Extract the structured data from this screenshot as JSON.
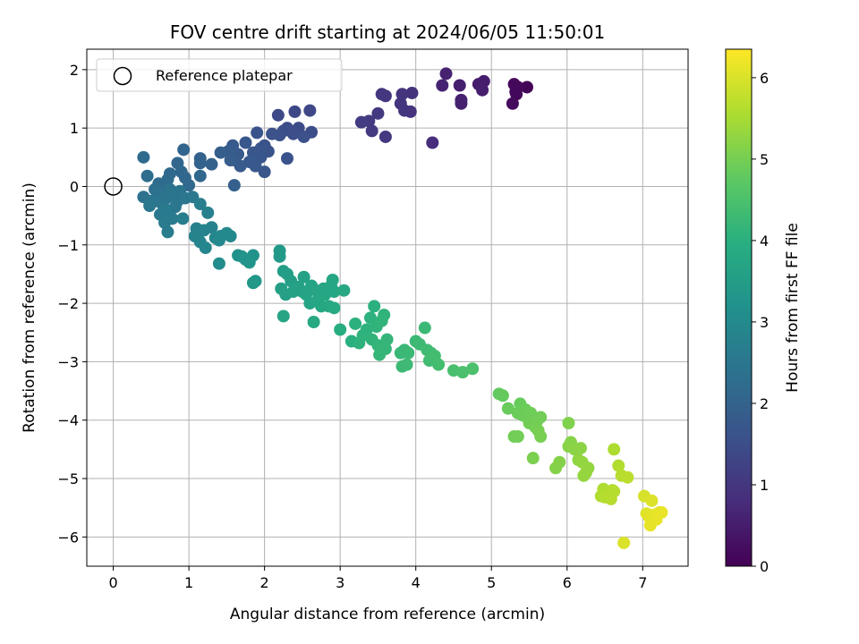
{
  "chart_data": {
    "type": "scatter",
    "title": "FOV centre drift starting at 2024/06/05 11:50:01",
    "xlabel": "Angular distance from reference (arcmin)",
    "ylabel": "Rotation from reference (arcmin)",
    "colorbar_label": "Hours from first FF file",
    "xlim": [
      -0.35,
      7.6
    ],
    "ylim": [
      -6.5,
      2.35
    ],
    "x_ticks": [
      0,
      1,
      2,
      3,
      4,
      5,
      6,
      7
    ],
    "y_ticks": [
      -6,
      -5,
      -4,
      -3,
      -2,
      -1,
      0,
      1,
      2
    ],
    "colorbar_range": [
      0,
      6.35
    ],
    "colorbar_ticks": [
      0,
      1,
      2,
      3,
      4,
      5,
      6
    ],
    "colormap": "viridis",
    "grid": true,
    "legend_position": "top-left",
    "legend": [
      {
        "label": "Reference platepar",
        "marker": "open-circle"
      }
    ],
    "reference_point": {
      "x": 0,
      "y": 0
    },
    "points": [
      {
        "x": 4.4,
        "y": 1.93,
        "t": 0.6
      },
      {
        "x": 4.35,
        "y": 1.73,
        "t": 0.62
      },
      {
        "x": 4.58,
        "y": 1.73,
        "t": 0.55
      },
      {
        "x": 4.6,
        "y": 1.48,
        "t": 0.58
      },
      {
        "x": 4.6,
        "y": 1.42,
        "t": 0.57
      },
      {
        "x": 4.83,
        "y": 1.75,
        "t": 0.5
      },
      {
        "x": 4.88,
        "y": 1.65,
        "t": 0.52
      },
      {
        "x": 4.9,
        "y": 1.8,
        "t": 0.48
      },
      {
        "x": 5.3,
        "y": 1.75,
        "t": 0.15
      },
      {
        "x": 5.33,
        "y": 1.58,
        "t": 0.12
      },
      {
        "x": 5.28,
        "y": 1.42,
        "t": 0.18
      },
      {
        "x": 5.35,
        "y": 1.7,
        "t": 0.1
      },
      {
        "x": 5.47,
        "y": 1.7,
        "t": 0.05
      },
      {
        "x": 5.32,
        "y": 1.62,
        "t": 0.08
      },
      {
        "x": 3.55,
        "y": 1.58,
        "t": 1.0
      },
      {
        "x": 3.6,
        "y": 1.55,
        "t": 0.98
      },
      {
        "x": 3.82,
        "y": 1.58,
        "t": 0.95
      },
      {
        "x": 3.95,
        "y": 1.6,
        "t": 0.9
      },
      {
        "x": 3.8,
        "y": 1.42,
        "t": 0.96
      },
      {
        "x": 3.85,
        "y": 1.3,
        "t": 0.97
      },
      {
        "x": 3.93,
        "y": 1.28,
        "t": 0.93
      },
      {
        "x": 3.5,
        "y": 1.25,
        "t": 1.05
      },
      {
        "x": 3.38,
        "y": 1.12,
        "t": 1.1
      },
      {
        "x": 3.28,
        "y": 1.1,
        "t": 1.12
      },
      {
        "x": 3.42,
        "y": 0.95,
        "t": 1.08
      },
      {
        "x": 3.6,
        "y": 0.85,
        "t": 1.02
      },
      {
        "x": 4.22,
        "y": 0.75,
        "t": 0.8
      },
      {
        "x": 2.18,
        "y": 1.22,
        "t": 1.4
      },
      {
        "x": 2.6,
        "y": 1.3,
        "t": 1.35
      },
      {
        "x": 2.4,
        "y": 1.28,
        "t": 1.38
      },
      {
        "x": 2.3,
        "y": 1.0,
        "t": 1.48
      },
      {
        "x": 2.25,
        "y": 0.95,
        "t": 1.5
      },
      {
        "x": 2.38,
        "y": 0.9,
        "t": 1.52
      },
      {
        "x": 2.45,
        "y": 1.0,
        "t": 1.45
      },
      {
        "x": 2.52,
        "y": 0.85,
        "t": 1.55
      },
      {
        "x": 2.62,
        "y": 0.93,
        "t": 1.5
      },
      {
        "x": 2.2,
        "y": 0.88,
        "t": 1.55
      },
      {
        "x": 2.1,
        "y": 0.9,
        "t": 1.58
      },
      {
        "x": 2.0,
        "y": 0.7,
        "t": 1.6
      },
      {
        "x": 1.9,
        "y": 0.92,
        "t": 1.62
      },
      {
        "x": 1.95,
        "y": 0.65,
        "t": 1.65
      },
      {
        "x": 1.85,
        "y": 0.58,
        "t": 1.7
      },
      {
        "x": 1.75,
        "y": 0.75,
        "t": 1.72
      },
      {
        "x": 1.65,
        "y": 0.55,
        "t": 1.75
      },
      {
        "x": 1.58,
        "y": 0.7,
        "t": 1.78
      },
      {
        "x": 1.6,
        "y": 0.45,
        "t": 1.8
      },
      {
        "x": 1.68,
        "y": 0.35,
        "t": 1.82
      },
      {
        "x": 1.52,
        "y": 0.6,
        "t": 1.85
      },
      {
        "x": 1.42,
        "y": 0.58,
        "t": 1.88
      },
      {
        "x": 1.55,
        "y": 0.45,
        "t": 1.86
      },
      {
        "x": 2.3,
        "y": 0.48,
        "t": 1.6
      },
      {
        "x": 2.0,
        "y": 0.25,
        "t": 1.7
      },
      {
        "x": 1.95,
        "y": 0.5,
        "t": 1.68
      },
      {
        "x": 1.88,
        "y": 0.35,
        "t": 1.74
      },
      {
        "x": 1.8,
        "y": 0.42,
        "t": 1.76
      },
      {
        "x": 1.6,
        "y": 0.02,
        "t": 1.9
      },
      {
        "x": 2.05,
        "y": 0.6,
        "t": 1.64
      },
      {
        "x": 1.3,
        "y": 0.38,
        "t": 1.95
      },
      {
        "x": 1.15,
        "y": 0.48,
        "t": 2.0
      },
      {
        "x": 1.15,
        "y": 0.4,
        "t": 2.02
      },
      {
        "x": 0.93,
        "y": 0.63,
        "t": 2.05
      },
      {
        "x": 0.85,
        "y": 0.4,
        "t": 2.08
      },
      {
        "x": 0.9,
        "y": 0.25,
        "t": 2.1
      },
      {
        "x": 0.95,
        "y": 0.15,
        "t": 2.12
      },
      {
        "x": 1.15,
        "y": 0.18,
        "t": 2.1
      },
      {
        "x": 0.75,
        "y": 0.22,
        "t": 2.15
      },
      {
        "x": 0.72,
        "y": 0.12,
        "t": 2.18
      },
      {
        "x": 0.7,
        "y": 0.05,
        "t": 2.2
      },
      {
        "x": 0.6,
        "y": 0.05,
        "t": 2.22
      },
      {
        "x": 0.45,
        "y": 0.18,
        "t": 2.25
      },
      {
        "x": 0.4,
        "y": 0.5,
        "t": 2.2
      },
      {
        "x": 1.0,
        "y": 0.02,
        "t": 2.15
      },
      {
        "x": 0.4,
        "y": -0.18,
        "t": 2.35
      },
      {
        "x": 0.5,
        "y": -0.25,
        "t": 2.4
      },
      {
        "x": 0.55,
        "y": -0.05,
        "t": 2.3
      },
      {
        "x": 0.6,
        "y": -0.1,
        "t": 2.38
      },
      {
        "x": 0.65,
        "y": -0.3,
        "t": 2.45
      },
      {
        "x": 0.7,
        "y": -0.2,
        "t": 2.42
      },
      {
        "x": 0.75,
        "y": -0.05,
        "t": 2.4
      },
      {
        "x": 0.8,
        "y": -0.15,
        "t": 2.45
      },
      {
        "x": 0.85,
        "y": -0.25,
        "t": 2.48
      },
      {
        "x": 0.88,
        "y": -0.08,
        "t": 2.44
      },
      {
        "x": 0.95,
        "y": -0.2,
        "t": 2.5
      },
      {
        "x": 1.05,
        "y": -0.18,
        "t": 2.52
      },
      {
        "x": 0.48,
        "y": -0.33,
        "t": 2.5
      },
      {
        "x": 0.62,
        "y": -0.48,
        "t": 2.55
      },
      {
        "x": 0.7,
        "y": -0.4,
        "t": 2.58
      },
      {
        "x": 0.68,
        "y": -0.62,
        "t": 2.6
      },
      {
        "x": 0.72,
        "y": -0.78,
        "t": 2.65
      },
      {
        "x": 0.78,
        "y": -0.55,
        "t": 2.62
      },
      {
        "x": 0.92,
        "y": -0.55,
        "t": 2.68
      },
      {
        "x": 0.58,
        "y": -0.25,
        "t": 2.47
      },
      {
        "x": 0.82,
        "y": -0.35,
        "t": 2.52
      },
      {
        "x": 1.1,
        "y": -0.72,
        "t": 2.75
      },
      {
        "x": 1.08,
        "y": -0.85,
        "t": 2.8
      },
      {
        "x": 1.2,
        "y": -0.75,
        "t": 2.82
      },
      {
        "x": 1.15,
        "y": -0.95,
        "t": 2.85
      },
      {
        "x": 1.22,
        "y": -1.05,
        "t": 2.9
      },
      {
        "x": 1.3,
        "y": -0.7,
        "t": 2.82
      },
      {
        "x": 1.35,
        "y": -0.88,
        "t": 2.92
      },
      {
        "x": 1.4,
        "y": -0.92,
        "t": 2.95
      },
      {
        "x": 1.42,
        "y": -0.85,
        "t": 2.94
      },
      {
        "x": 1.5,
        "y": -0.8,
        "t": 2.96
      },
      {
        "x": 1.55,
        "y": -0.85,
        "t": 2.98
      },
      {
        "x": 1.4,
        "y": -1.32,
        "t": 3.05
      },
      {
        "x": 1.25,
        "y": -0.45,
        "t": 2.75
      },
      {
        "x": 1.15,
        "y": -0.3,
        "t": 2.7
      },
      {
        "x": 1.65,
        "y": -1.18,
        "t": 3.2
      },
      {
        "x": 1.7,
        "y": -1.2,
        "t": 3.22
      },
      {
        "x": 1.75,
        "y": -1.25,
        "t": 3.25
      },
      {
        "x": 1.8,
        "y": -1.3,
        "t": 3.28
      },
      {
        "x": 1.85,
        "y": -1.18,
        "t": 3.24
      },
      {
        "x": 1.88,
        "y": -1.62,
        "t": 3.35
      },
      {
        "x": 1.85,
        "y": -1.65,
        "t": 3.34
      },
      {
        "x": 2.2,
        "y": -1.1,
        "t": 3.4
      },
      {
        "x": 2.2,
        "y": -1.2,
        "t": 3.42
      },
      {
        "x": 2.22,
        "y": -1.75,
        "t": 3.55
      },
      {
        "x": 2.25,
        "y": -1.45,
        "t": 3.5
      },
      {
        "x": 2.28,
        "y": -1.85,
        "t": 3.58
      },
      {
        "x": 2.3,
        "y": -1.5,
        "t": 3.52
      },
      {
        "x": 2.35,
        "y": -1.62,
        "t": 3.55
      },
      {
        "x": 2.38,
        "y": -1.8,
        "t": 3.6
      },
      {
        "x": 2.42,
        "y": -1.75,
        "t": 3.62
      },
      {
        "x": 2.45,
        "y": -1.72,
        "t": 3.6
      },
      {
        "x": 2.5,
        "y": -1.8,
        "t": 3.65
      },
      {
        "x": 2.52,
        "y": -1.55,
        "t": 3.6
      },
      {
        "x": 2.55,
        "y": -1.85,
        "t": 3.68
      },
      {
        "x": 2.6,
        "y": -2.0,
        "t": 3.72
      },
      {
        "x": 2.62,
        "y": -1.7,
        "t": 3.66
      },
      {
        "x": 2.65,
        "y": -2.32,
        "t": 3.8
      },
      {
        "x": 2.68,
        "y": -1.78,
        "t": 3.7
      },
      {
        "x": 2.7,
        "y": -1.95,
        "t": 3.75
      },
      {
        "x": 2.75,
        "y": -2.05,
        "t": 3.78
      },
      {
        "x": 2.78,
        "y": -1.75,
        "t": 3.72
      },
      {
        "x": 2.8,
        "y": -1.85,
        "t": 3.76
      },
      {
        "x": 2.85,
        "y": -2.05,
        "t": 3.8
      },
      {
        "x": 2.88,
        "y": -1.7,
        "t": 3.76
      },
      {
        "x": 2.9,
        "y": -1.6,
        "t": 3.74
      },
      {
        "x": 2.92,
        "y": -2.08,
        "t": 3.82
      },
      {
        "x": 3.05,
        "y": -1.78,
        "t": 3.8
      },
      {
        "x": 2.25,
        "y": -2.22,
        "t": 3.7
      },
      {
        "x": 2.92,
        "y": -1.8,
        "t": 3.78
      },
      {
        "x": 3.0,
        "y": -2.45,
        "t": 3.95
      },
      {
        "x": 3.15,
        "y": -2.65,
        "t": 4.0
      },
      {
        "x": 3.2,
        "y": -2.35,
        "t": 4.02
      },
      {
        "x": 3.25,
        "y": -2.68,
        "t": 4.05
      },
      {
        "x": 3.3,
        "y": -2.55,
        "t": 4.08
      },
      {
        "x": 3.35,
        "y": -2.45,
        "t": 4.06
      },
      {
        "x": 3.4,
        "y": -2.25,
        "t": 4.05
      },
      {
        "x": 3.42,
        "y": -2.62,
        "t": 4.1
      },
      {
        "x": 3.45,
        "y": -2.05,
        "t": 4.02
      },
      {
        "x": 3.48,
        "y": -2.4,
        "t": 4.1
      },
      {
        "x": 3.5,
        "y": -2.72,
        "t": 4.15
      },
      {
        "x": 3.52,
        "y": -2.88,
        "t": 4.18
      },
      {
        "x": 3.55,
        "y": -2.3,
        "t": 4.12
      },
      {
        "x": 3.58,
        "y": -2.2,
        "t": 4.1
      },
      {
        "x": 3.6,
        "y": -2.78,
        "t": 4.18
      },
      {
        "x": 3.62,
        "y": -2.62,
        "t": 4.16
      },
      {
        "x": 3.8,
        "y": -2.85,
        "t": 4.22
      },
      {
        "x": 3.82,
        "y": -3.08,
        "t": 4.28
      },
      {
        "x": 3.85,
        "y": -2.8,
        "t": 4.24
      },
      {
        "x": 3.88,
        "y": -3.05,
        "t": 4.3
      },
      {
        "x": 3.9,
        "y": -2.85,
        "t": 4.26
      },
      {
        "x": 4.0,
        "y": -2.65,
        "t": 4.25
      },
      {
        "x": 4.05,
        "y": -2.7,
        "t": 4.28
      },
      {
        "x": 4.12,
        "y": -2.42,
        "t": 4.25
      },
      {
        "x": 4.15,
        "y": -2.8,
        "t": 4.32
      },
      {
        "x": 4.18,
        "y": -2.98,
        "t": 4.36
      },
      {
        "x": 4.2,
        "y": -2.85,
        "t": 4.34
      },
      {
        "x": 4.22,
        "y": -2.95,
        "t": 4.36
      },
      {
        "x": 4.25,
        "y": -2.9,
        "t": 4.38
      },
      {
        "x": 4.3,
        "y": -3.05,
        "t": 4.4
      },
      {
        "x": 4.5,
        "y": -3.15,
        "t": 4.45
      },
      {
        "x": 4.62,
        "y": -3.18,
        "t": 4.48
      },
      {
        "x": 4.75,
        "y": -3.12,
        "t": 4.5
      },
      {
        "x": 5.1,
        "y": -3.55,
        "t": 4.8
      },
      {
        "x": 5.15,
        "y": -3.58,
        "t": 4.82
      },
      {
        "x": 5.22,
        "y": -3.8,
        "t": 4.86
      },
      {
        "x": 5.3,
        "y": -4.28,
        "t": 4.95
      },
      {
        "x": 5.35,
        "y": -4.28,
        "t": 4.96
      },
      {
        "x": 5.35,
        "y": -3.88,
        "t": 4.88
      },
      {
        "x": 5.38,
        "y": -3.72,
        "t": 4.85
      },
      {
        "x": 5.42,
        "y": -3.92,
        "t": 4.9
      },
      {
        "x": 5.45,
        "y": -3.82,
        "t": 4.89
      },
      {
        "x": 5.5,
        "y": -4.05,
        "t": 4.95
      },
      {
        "x": 5.52,
        "y": -3.88,
        "t": 4.92
      },
      {
        "x": 5.55,
        "y": -4.65,
        "t": 5.05
      },
      {
        "x": 5.58,
        "y": -4.12,
        "t": 4.98
      },
      {
        "x": 5.6,
        "y": -4.02,
        "t": 4.96
      },
      {
        "x": 5.62,
        "y": -4.18,
        "t": 5.0
      },
      {
        "x": 5.65,
        "y": -4.28,
        "t": 5.02
      },
      {
        "x": 5.65,
        "y": -3.95,
        "t": 4.95
      },
      {
        "x": 5.85,
        "y": -4.82,
        "t": 5.15
      },
      {
        "x": 5.9,
        "y": -4.72,
        "t": 5.15
      },
      {
        "x": 6.02,
        "y": -4.05,
        "t": 5.1
      },
      {
        "x": 6.02,
        "y": -4.45,
        "t": 5.18
      },
      {
        "x": 6.05,
        "y": -4.38,
        "t": 5.16
      },
      {
        "x": 6.1,
        "y": -4.5,
        "t": 5.2
      },
      {
        "x": 6.15,
        "y": -4.68,
        "t": 5.25
      },
      {
        "x": 6.18,
        "y": -4.48,
        "t": 5.22
      },
      {
        "x": 6.2,
        "y": -4.72,
        "t": 5.28
      },
      {
        "x": 6.22,
        "y": -4.95,
        "t": 5.32
      },
      {
        "x": 6.25,
        "y": -4.9,
        "t": 5.32
      },
      {
        "x": 6.28,
        "y": -4.82,
        "t": 5.3
      },
      {
        "x": 6.45,
        "y": -5.3,
        "t": 5.6
      },
      {
        "x": 6.48,
        "y": -5.18,
        "t": 5.58
      },
      {
        "x": 6.5,
        "y": -5.32,
        "t": 5.62
      },
      {
        "x": 6.55,
        "y": -5.28,
        "t": 5.64
      },
      {
        "x": 6.58,
        "y": -5.35,
        "t": 5.66
      },
      {
        "x": 6.6,
        "y": -5.2,
        "t": 5.62
      },
      {
        "x": 6.62,
        "y": -5.22,
        "t": 5.64
      },
      {
        "x": 6.62,
        "y": -4.5,
        "t": 5.55
      },
      {
        "x": 6.68,
        "y": -4.78,
        "t": 5.6
      },
      {
        "x": 6.72,
        "y": -4.95,
        "t": 5.66
      },
      {
        "x": 6.8,
        "y": -4.98,
        "t": 5.7
      },
      {
        "x": 6.75,
        "y": -6.1,
        "t": 6.0
      },
      {
        "x": 7.02,
        "y": -5.3,
        "t": 5.95
      },
      {
        "x": 7.05,
        "y": -5.6,
        "t": 6.05
      },
      {
        "x": 7.08,
        "y": -5.65,
        "t": 6.08
      },
      {
        "x": 7.1,
        "y": -5.8,
        "t": 6.12
      },
      {
        "x": 7.12,
        "y": -5.38,
        "t": 6.02
      },
      {
        "x": 7.15,
        "y": -5.62,
        "t": 6.1
      },
      {
        "x": 7.18,
        "y": -5.7,
        "t": 6.14
      },
      {
        "x": 7.22,
        "y": -5.58,
        "t": 6.12
      },
      {
        "x": 7.25,
        "y": -5.58,
        "t": 6.15
      }
    ]
  }
}
